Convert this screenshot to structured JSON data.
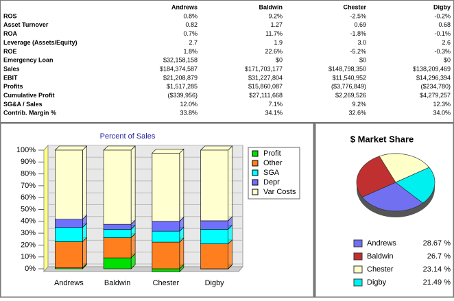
{
  "table": {
    "columns": [
      "Andrews",
      "Baldwin",
      "Chester",
      "Digby"
    ],
    "rows": [
      [
        "ROS",
        "0.8%",
        "9.2%",
        "-2.5%",
        "-0.2%"
      ],
      [
        "Asset Turnover",
        "0.82",
        "1.27",
        "0.69",
        "0.68"
      ],
      [
        "ROA",
        "0.7%",
        "11.7%",
        "-1.8%",
        "-0.1%"
      ],
      [
        "Leverage (Assets/Equity)",
        "2.7",
        "1.9",
        "3.0",
        "2.6"
      ],
      [
        "ROE",
        "1.8%",
        "22.6%",
        "-5.2%",
        "-0.3%"
      ],
      [
        "Emergency Loan",
        "$32,158,158",
        "$0",
        "$0",
        "$0"
      ],
      [
        "Sales",
        "$184,374,587",
        "$171,703,177",
        "$148,798,350",
        "$138,209,469"
      ],
      [
        "EBIT",
        "$21,208,879",
        "$31,227,804",
        "$11,540,952",
        "$14,296,394"
      ],
      [
        "Profits",
        "$1,517,285",
        "$15,860,087",
        "($3,776,849)",
        "($234,780)"
      ],
      [
        "Cumulative Profit",
        "($339,956)",
        "$27,111,668",
        "$2,269,526",
        "$4,279,257"
      ],
      [
        "SG&A / Sales",
        "12.0%",
        "7.1%",
        "9.2%",
        "12.3%"
      ],
      [
        "Contrib. Margin %",
        "33.8%",
        "34.1%",
        "32.6%",
        "34.0%"
      ]
    ]
  },
  "chart_data": [
    {
      "type": "bar",
      "title": "Percent of Sales",
      "stacked": true,
      "categories": [
        "Andrews",
        "Baldwin",
        "Chester",
        "Digby"
      ],
      "series": [
        {
          "name": "Profit",
          "color": "#00e000",
          "values": [
            0.8,
            9.2,
            -2.5,
            -0.2
          ]
        },
        {
          "name": "Other",
          "color": "#ff7f1e",
          "values": [
            22,
            17,
            22.5,
            21
          ]
        },
        {
          "name": "SGA",
          "color": "#00ffff",
          "values": [
            12,
            7.1,
            9.2,
            12.3
          ]
        },
        {
          "name": "Depr",
          "color": "#7070ff",
          "values": [
            7,
            4.2,
            8.3,
            7.2
          ]
        },
        {
          "name": "Var Costs",
          "color": "#ffffd0",
          "values": [
            58.2,
            62.5,
            57.5,
            59.5
          ]
        }
      ],
      "ylim": [
        0,
        100
      ],
      "yticks": [
        {
          "value": 0,
          "label": "0%"
        },
        {
          "value": 10,
          "label": "10%"
        },
        {
          "value": 20,
          "label": "20%"
        },
        {
          "value": 30,
          "label": "30%"
        },
        {
          "value": 40,
          "label": "40%"
        },
        {
          "value": 50,
          "label": "50%"
        },
        {
          "value": 60,
          "label": "60%"
        },
        {
          "value": 70,
          "label": "70%"
        },
        {
          "value": 80,
          "label": "80%"
        },
        {
          "value": 90,
          "label": "90%"
        },
        {
          "value": 100,
          "label": "100%"
        }
      ]
    },
    {
      "type": "pie",
      "title": "$ Market Share",
      "categories": [
        "Andrews",
        "Baldwin",
        "Chester",
        "Digby"
      ],
      "values": [
        28.67,
        26.7,
        23.14,
        21.49
      ],
      "value_labels": [
        "28.67 %",
        "26.7 %",
        "23.14 %",
        "21.49 %"
      ],
      "colors": [
        "#7070f0",
        "#c03030",
        "#ffffc8",
        "#00f0f0"
      ]
    }
  ]
}
